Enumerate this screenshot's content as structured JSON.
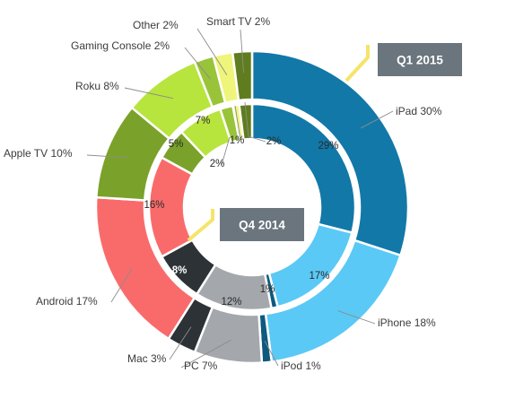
{
  "chart_data": {
    "type": "donut",
    "title": "",
    "series": [
      {
        "name": "Q1 2015",
        "ring": "outer",
        "slices": [
          {
            "category": "iPad",
            "label": "iPad 30%",
            "value": 30,
            "color": "#1278a8"
          },
          {
            "category": "iPhone",
            "label": "iPhone 18%",
            "value": 18,
            "color": "#5bc9f5"
          },
          {
            "category": "iPod",
            "label": "iPod 1%",
            "value": 1,
            "color": "#0e5a7e"
          },
          {
            "category": "PC",
            "label": "PC 7%",
            "value": 7,
            "color": "#a4a8ad"
          },
          {
            "category": "Mac",
            "label": "Mac 3%",
            "value": 3,
            "color": "#2d3236"
          },
          {
            "category": "Android",
            "label": "Android 17%",
            "value": 17,
            "color": "#f96b6b"
          },
          {
            "category": "Apple TV",
            "label": "Apple TV 10%",
            "value": 10,
            "color": "#7aa22a"
          },
          {
            "category": "Roku",
            "label": "Roku 8%",
            "value": 8,
            "color": "#b8e43e"
          },
          {
            "category": "Gaming Console",
            "label": "Gaming Console 2%",
            "value": 2,
            "color": "#99c43a"
          },
          {
            "category": "Other",
            "label": "Other 2%",
            "value": 2,
            "color": "#eef57a"
          },
          {
            "category": "Smart TV",
            "label": "Smart TV 2%",
            "value": 2,
            "color": "#5f7d1e"
          }
        ]
      },
      {
        "name": "Q4 2014",
        "ring": "inner",
        "slices": [
          {
            "category": "iPad",
            "label": "29%",
            "value": 29,
            "color": "#1278a8"
          },
          {
            "category": "iPhone",
            "label": "17%",
            "value": 17,
            "color": "#5bc9f5"
          },
          {
            "category": "iPod",
            "label": "1%",
            "value": 1,
            "color": "#0e5a7e"
          },
          {
            "category": "PC",
            "label": "12%",
            "value": 12,
            "color": "#a4a8ad"
          },
          {
            "category": "Mac",
            "label": "8%",
            "value": 8,
            "color": "#2d3236"
          },
          {
            "category": "Android",
            "label": "16%",
            "value": 16,
            "color": "#f96b6b"
          },
          {
            "category": "Apple TV",
            "label": "5%",
            "value": 5,
            "color": "#7aa22a"
          },
          {
            "category": "Roku",
            "label": "7%",
            "value": 7,
            "color": "#b8e43e"
          },
          {
            "category": "Gaming Console",
            "label": "2%",
            "value": 2,
            "color": "#99c43a"
          },
          {
            "category": "Other",
            "label": "1%",
            "value": 1,
            "color": "#eef57a"
          },
          {
            "category": "Smart TV",
            "label": "2%",
            "value": 2,
            "color": "#5f7d1e"
          }
        ]
      }
    ],
    "callouts": [
      {
        "text": "Q1 2015",
        "ring": "outer",
        "color": "#6a757d",
        "pointer_color": "#f5e46a"
      },
      {
        "text": "Q4 2014",
        "ring": "inner",
        "color": "#6a757d",
        "pointer_color": "#f5e46a"
      }
    ],
    "legend": "none",
    "grid": false
  }
}
